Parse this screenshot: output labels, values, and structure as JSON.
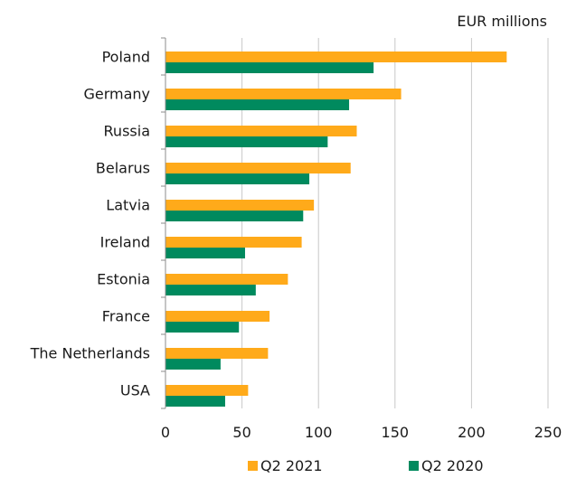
{
  "chart_data": {
    "type": "bar",
    "orientation": "horizontal",
    "unit_label": "EUR millions",
    "categories": [
      "Poland",
      "Germany",
      "Russia",
      "Belarus",
      "Latvia",
      "Ireland",
      "Estonia",
      "France",
      "The Netherlands",
      "USA"
    ],
    "series": [
      {
        "name": "Q2 2021",
        "color": "#FFAA1A",
        "values": [
          223,
          154,
          125,
          121,
          97,
          89,
          80,
          68,
          67,
          54
        ]
      },
      {
        "name": "Q2 2020",
        "color": "#008A5E",
        "values": [
          136,
          120,
          106,
          94,
          90,
          52,
          59,
          48,
          36,
          39
        ]
      }
    ],
    "xlim": [
      0,
      250
    ],
    "xticks": [
      0,
      50,
      100,
      150,
      200,
      250
    ],
    "grid": true,
    "legend_position": "bottom"
  }
}
